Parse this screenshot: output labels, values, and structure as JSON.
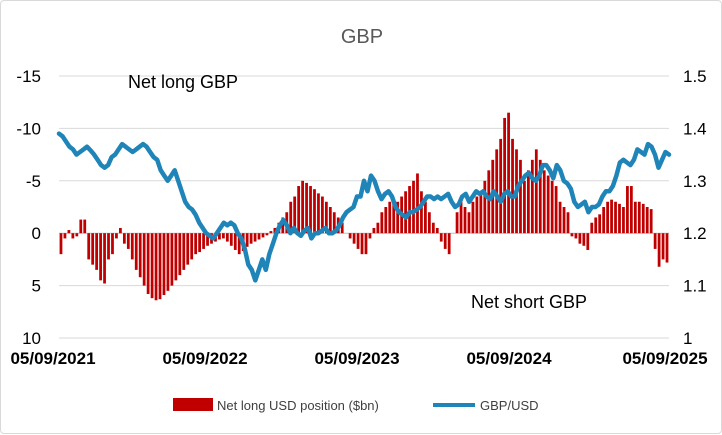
{
  "chart_data": {
    "type": "bar+line",
    "title": "GBP",
    "annotations": {
      "top": "Net long GBP",
      "bottom": "Net short GBP"
    },
    "x_ticks": [
      "05/09/2021",
      "05/09/2022",
      "05/09/2023",
      "05/09/2024",
      "05/09/2025"
    ],
    "left_axis": {
      "ticks": [
        "-15",
        "-10",
        "-5",
        "0",
        "5",
        "10"
      ],
      "range": [
        -15,
        10
      ],
      "inverted": true
    },
    "right_axis": {
      "ticks": [
        "1.5",
        "1.4",
        "1.3",
        "1.2",
        "1.1",
        "1"
      ],
      "range": [
        1.0,
        1.5
      ]
    },
    "grid": true,
    "legend_position": "bottom",
    "series": [
      {
        "name": "Net long USD position ($bn)",
        "type": "bar",
        "axis": "left",
        "color": "#c00000",
        "values": [
          2,
          0.5,
          -0.3,
          0.5,
          0.3,
          -1.3,
          -1.3,
          2.5,
          3,
          3.5,
          4.5,
          4.8,
          2.5,
          2,
          0.5,
          -0.5,
          1,
          1.5,
          2.5,
          3.5,
          4.2,
          5,
          5.8,
          6.2,
          6.4,
          6.3,
          5.9,
          5.5,
          5,
          4.5,
          4,
          3.5,
          3,
          2.5,
          2,
          1.8,
          1.5,
          1.2,
          1,
          0.8,
          0.6,
          0.5,
          0.8,
          1.2,
          1.6,
          2,
          1.7,
          1.3,
          1,
          0.8,
          0.6,
          0.4,
          0.2,
          -0.2,
          -0.5,
          -1,
          -1.5,
          -2,
          -3,
          -3.5,
          -4.5,
          -5,
          -4.8,
          -4.5,
          -4.2,
          -3.8,
          -3.5,
          -3,
          -2.5,
          -2,
          -1.5,
          -1,
          0,
          0.5,
          1,
          1.5,
          2,
          2,
          0.5,
          -0.5,
          -1,
          -2,
          -2.5,
          -3,
          -3.3,
          -3,
          -3.5,
          -4,
          -4.5,
          -5,
          -5.7,
          -4,
          -3,
          -2,
          -1,
          -0.5,
          0.8,
          1.5,
          2,
          0,
          -2,
          -3,
          -2.5,
          -2,
          -3,
          -3.5,
          -4,
          -5,
          -6,
          -7,
          -8,
          -9,
          -11,
          -11.5,
          -9,
          -8,
          -7,
          -5,
          -6,
          -7,
          -8,
          -7,
          -6,
          -5.5,
          -5,
          -4.5,
          -3,
          -2.5,
          -2,
          0.3,
          0.5,
          1,
          1.2,
          1.6,
          -1,
          -1.5,
          -1.8,
          -2.5,
          -3,
          -3.2,
          -3,
          -2.8,
          -2.5,
          -4.5,
          -4.5,
          -3,
          -3,
          -2.8,
          -2.5,
          -2.3,
          1.5,
          3.2,
          2.5,
          2.8
        ]
      },
      {
        "name": "GBP/USD",
        "type": "line",
        "axis": "right",
        "color": "#1f85b8",
        "values": [
          1.39,
          1.385,
          1.375,
          1.365,
          1.36,
          1.35,
          1.355,
          1.36,
          1.365,
          1.358,
          1.35,
          1.34,
          1.33,
          1.325,
          1.33,
          1.345,
          1.35,
          1.36,
          1.37,
          1.365,
          1.36,
          1.355,
          1.36,
          1.365,
          1.37,
          1.365,
          1.355,
          1.345,
          1.34,
          1.32,
          1.31,
          1.3,
          1.31,
          1.32,
          1.3,
          1.28,
          1.26,
          1.25,
          1.245,
          1.235,
          1.22,
          1.21,
          1.2,
          1.195,
          1.19,
          1.2,
          1.21,
          1.22,
          1.215,
          1.22,
          1.215,
          1.2,
          1.19,
          1.17,
          1.14,
          1.13,
          1.11,
          1.13,
          1.15,
          1.13,
          1.16,
          1.18,
          1.2,
          1.215,
          1.225,
          1.215,
          1.2,
          1.21,
          1.2,
          1.195,
          1.205,
          1.21,
          1.19,
          1.2,
          1.2,
          1.205,
          1.21,
          1.2,
          1.2,
          1.205,
          1.215,
          1.23,
          1.24,
          1.245,
          1.25,
          1.27,
          1.27,
          1.3,
          1.28,
          1.31,
          1.3,
          1.28,
          1.265,
          1.275,
          1.28,
          1.27,
          1.25,
          1.24,
          1.235,
          1.23,
          1.24,
          1.24,
          1.245,
          1.25,
          1.26,
          1.27,
          1.27,
          1.265,
          1.27,
          1.265,
          1.27,
          1.275,
          1.26,
          1.25,
          1.255,
          1.27,
          1.275,
          1.26,
          1.27,
          1.28,
          1.275,
          1.28,
          1.27,
          1.265,
          1.28,
          1.27,
          1.26,
          1.275,
          1.28,
          1.27,
          1.27,
          1.29,
          1.3,
          1.31,
          1.315,
          1.305,
          1.3,
          1.31,
          1.33,
          1.33,
          1.32,
          1.305,
          1.33,
          1.32,
          1.3,
          1.295,
          1.285,
          1.26,
          1.25,
          1.255,
          1.26,
          1.24,
          1.25,
          1.25,
          1.255,
          1.27,
          1.28,
          1.28,
          1.29,
          1.31,
          1.335,
          1.34,
          1.335,
          1.33,
          1.34,
          1.36,
          1.355,
          1.35,
          1.37,
          1.365,
          1.35,
          1.325,
          1.34,
          1.355,
          1.35
        ]
      }
    ]
  }
}
